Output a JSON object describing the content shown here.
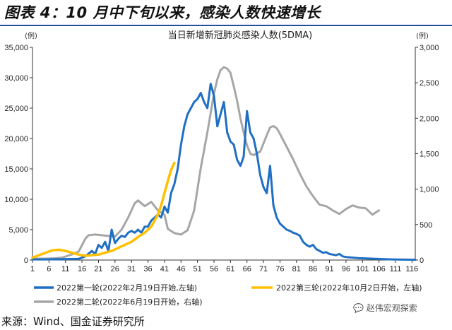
{
  "figure_title": "图表 4：10 月中下旬以来，感染人数快速增长",
  "source": "来源：Wind、国金证券研究所",
  "watermark": "赵伟宏观探索",
  "watermark_icon": "wechat-icon",
  "chart_data": {
    "type": "line",
    "title": "当日新增新冠肺炎感染人数(5DMA)",
    "y_left_unit": "(例)",
    "y_right_unit": "(例)",
    "ylim_left": [
      0,
      35000
    ],
    "ylim_right": [
      0,
      3000
    ],
    "xlim": [
      1,
      117
    ],
    "x_ticks": [
      1,
      6,
      11,
      16,
      21,
      26,
      31,
      36,
      41,
      46,
      51,
      56,
      61,
      66,
      71,
      76,
      81,
      86,
      91,
      96,
      101,
      106,
      111,
      116
    ],
    "y_left_ticks": [
      "0",
      "5,000",
      "10,000",
      "15,000",
      "20,000",
      "25,000",
      "30,000",
      "35,000"
    ],
    "y_right_ticks": [
      "0",
      "500",
      "1,000",
      "1,500",
      "2,000",
      "2,500",
      "3,000"
    ],
    "grid": false,
    "legend_position": "bottom",
    "series": [
      {
        "name": "2022第一轮(2022年2月19日开始,左轴)",
        "axis": "left",
        "color": "#1f6fc4",
        "x": [
          1,
          5,
          10,
          15,
          17,
          19,
          20,
          21,
          22,
          23,
          24,
          25,
          26,
          27,
          28,
          29,
          30,
          31,
          32,
          33,
          34,
          35,
          36,
          37,
          38,
          39,
          40,
          41,
          42,
          43,
          44,
          45,
          46,
          47,
          48,
          49,
          50,
          51,
          52,
          53,
          54,
          55,
          56,
          57,
          58,
          59,
          60,
          61,
          62,
          63,
          64,
          65,
          66,
          67,
          68,
          69,
          70,
          71,
          72,
          73,
          74,
          75,
          76,
          77,
          78,
          79,
          80,
          81,
          82,
          83,
          84,
          85,
          86,
          87,
          88,
          89,
          90,
          91,
          92,
          93,
          94,
          95,
          96,
          100,
          105,
          110,
          117
        ],
        "y": [
          100,
          100,
          150,
          200,
          600,
          1500,
          1000,
          2500,
          2000,
          3000,
          1500,
          5000,
          2800,
          3500,
          4000,
          3800,
          4500,
          4800,
          4500,
          5000,
          4500,
          5500,
          5500,
          6500,
          7000,
          7500,
          7000,
          8800,
          7800,
          11000,
          12500,
          15000,
          19000,
          22000,
          24000,
          25000,
          26000,
          26500,
          27500,
          26000,
          25000,
          29000,
          27000,
          22000,
          24000,
          26000,
          21000,
          19500,
          19000,
          16500,
          15500,
          17000,
          24500,
          21000,
          20000,
          17500,
          14000,
          12000,
          11000,
          15500,
          9000,
          7000,
          6000,
          5500,
          5000,
          4800,
          4500,
          4300,
          4000,
          3000,
          2500,
          2200,
          2500,
          1800,
          1500,
          1200,
          1300,
          1000,
          900,
          800,
          1000,
          600,
          500,
          300,
          200,
          100,
          50
        ]
      },
      {
        "name": "2022第二轮(2022年6月19日开始，右轴)",
        "axis": "right",
        "color": "#a6a6a6",
        "x": [
          1,
          5,
          8,
          10,
          13,
          15,
          17,
          18,
          20,
          22,
          24,
          26,
          28,
          30,
          32,
          33,
          35,
          37,
          39,
          41,
          42,
          44,
          46,
          48,
          50,
          52,
          54,
          56,
          57,
          58,
          59,
          60,
          61,
          62,
          63,
          64,
          65,
          66,
          67,
          68,
          70,
          72,
          73,
          74,
          75,
          76,
          78,
          80,
          82,
          84,
          86,
          88,
          90,
          92,
          94,
          96,
          98,
          100,
          102,
          104,
          106
        ],
        "y": [
          20,
          20,
          25,
          35,
          80,
          120,
          300,
          350,
          360,
          350,
          340,
          330,
          430,
          600,
          800,
          840,
          760,
          820,
          700,
          640,
          440,
          380,
          360,
          420,
          700,
          1300,
          1800,
          2350,
          2550,
          2680,
          2720,
          2700,
          2640,
          2450,
          2250,
          2000,
          1800,
          1620,
          1500,
          1480,
          1530,
          1760,
          1870,
          1890,
          1860,
          1780,
          1600,
          1420,
          1220,
          1040,
          900,
          780,
          760,
          700,
          650,
          720,
          770,
          740,
          730,
          640,
          700
        ]
      },
      {
        "name": "2022第三轮(2022年10月2日开始，左轴)",
        "axis": "left",
        "color": "#ffc000",
        "x": [
          1,
          3,
          5,
          7,
          9,
          11,
          13,
          15,
          17,
          19,
          21,
          23,
          25,
          27,
          29,
          31,
          33,
          35,
          36,
          37,
          38,
          39,
          40,
          41,
          42,
          43,
          44
        ],
        "y": [
          400,
          800,
          1200,
          1600,
          1700,
          1500,
          1200,
          900,
          700,
          800,
          900,
          1200,
          1500,
          2000,
          2500,
          3000,
          3800,
          4500,
          5000,
          5500,
          6500,
          7500,
          9000,
          11000,
          13000,
          14800,
          16000
        ]
      }
    ]
  }
}
